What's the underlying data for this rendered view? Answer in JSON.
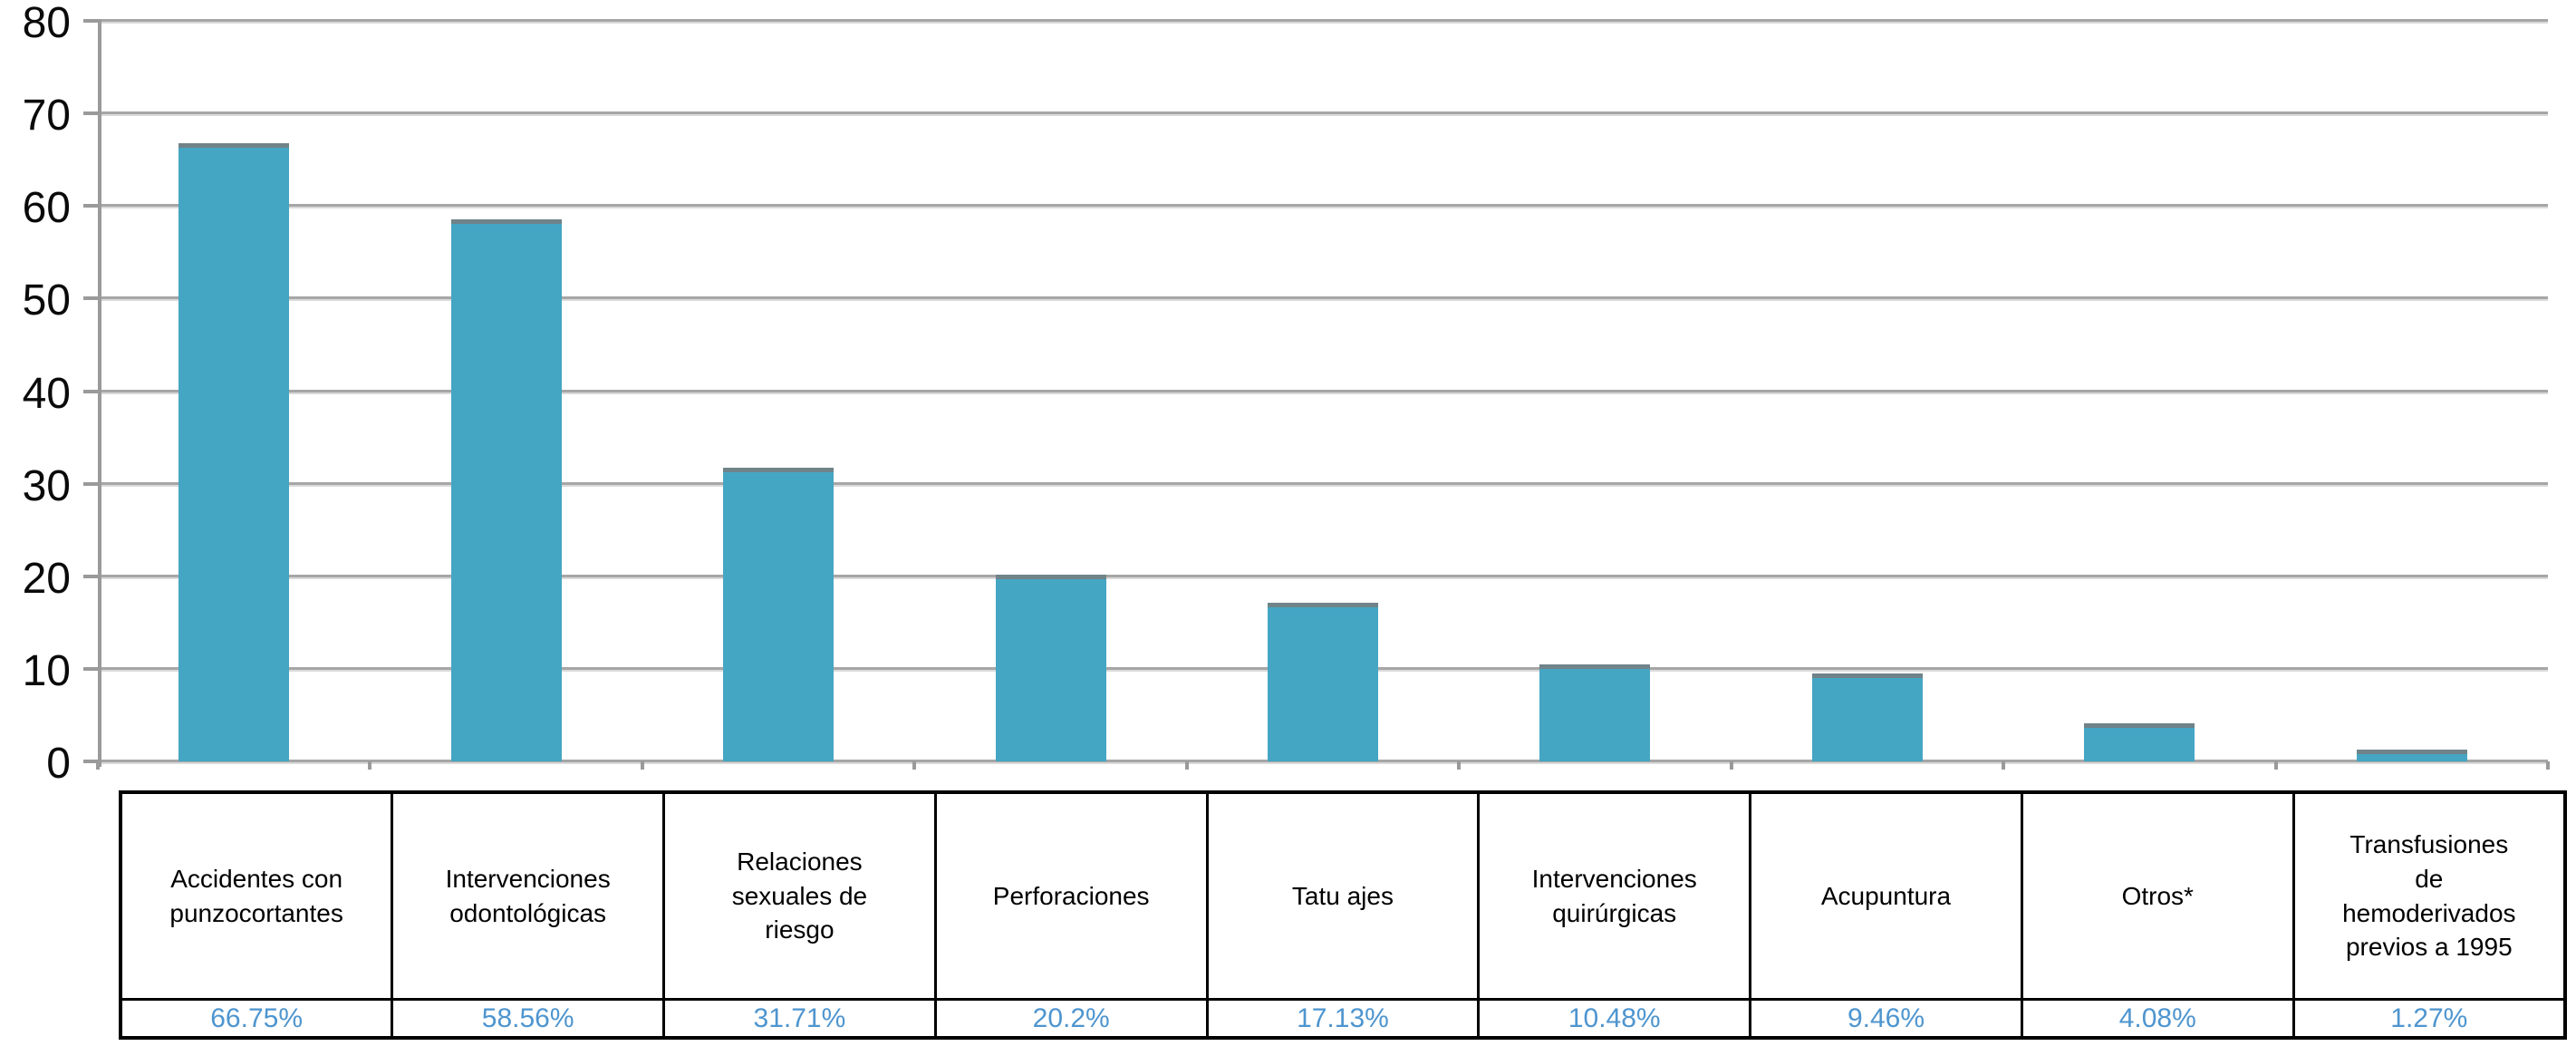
{
  "chart_data": {
    "type": "bar",
    "title": "",
    "xlabel": "",
    "ylabel": "",
    "categories": [
      "Accidentes con punzocortantes",
      "Intervenciones odontológicas",
      "Relaciones sexuales de riesgo",
      "Perforaciones",
      "Tatu ajes",
      "Intervenciones quirúrgicas",
      "Acupuntura",
      "Otros*",
      "Transfusiones de hemoderivados previos a 1995"
    ],
    "category_display": [
      "Accidentes con\npunzocortantes",
      "Intervenciones\nodontológicas",
      "Relaciones\nsexuales de\nriesgo",
      "Perforaciones",
      "Tatu ajes",
      "Intervenciones\nquirúrgicas",
      "Acupuntura",
      "Otros*",
      "Transfusiones\nde\nhemoderivados\nprevios a 1995"
    ],
    "values": [
      66.75,
      58.56,
      31.71,
      20.2,
      17.13,
      10.48,
      9.46,
      4.08,
      1.27
    ],
    "value_labels": [
      "66.75%",
      "58.56%",
      "31.71%",
      "20.2%",
      "17.13%",
      "10.48%",
      "9.46%",
      "4.08%",
      "1.27%"
    ],
    "ylim": [
      0,
      80
    ],
    "yticks": [
      "0",
      "10",
      "20",
      "30",
      "40",
      "50",
      "60",
      "70",
      "80"
    ],
    "grid": "horizontal",
    "legend": "none",
    "colors": {
      "bar_fill": "#45a6c3",
      "bar_top_edge": "#6f8389",
      "gridline": "#a6a6a6",
      "gridline_light": "#dadada",
      "axis": "#9a9a9a",
      "table_border": "#000000",
      "category_text": "#000000",
      "value_text": "#4e95cf",
      "background": "#ffffff"
    }
  }
}
